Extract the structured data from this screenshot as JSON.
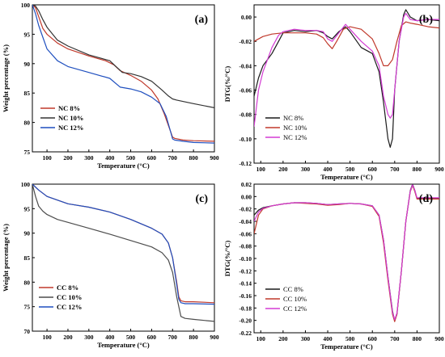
{
  "colors": {
    "black": "#1a1a1a",
    "red": "#c0392b",
    "blue": "#1f4fbf",
    "magenta": "#d33bd3",
    "gray": "#4d4d4d"
  },
  "chart_data": [
    {
      "id": "a",
      "panel_label": "(a)",
      "type": "line",
      "xlabel": "Temperature (°C)",
      "ylabel": "Weight percentage (%)",
      "xlim": [
        30,
        900
      ],
      "ylim": [
        75,
        100
      ],
      "xticks": [
        100,
        200,
        300,
        400,
        500,
        600,
        700,
        800,
        900
      ],
      "yticks": [
        75,
        80,
        85,
        90,
        95,
        100
      ],
      "legend_position": "lower-left",
      "legend_style": "bold",
      "series": [
        {
          "name": "NC 8%",
          "color": "#c0392b",
          "x": [
            30,
            45,
            60,
            80,
            100,
            150,
            200,
            300,
            380,
            420,
            450,
            500,
            550,
            600,
            630,
            660,
            690,
            700,
            710,
            750,
            800,
            900
          ],
          "y": [
            100,
            99.5,
            98,
            96,
            95,
            93.5,
            92.5,
            91.3,
            90.5,
            89.8,
            88.8,
            88.0,
            87.0,
            85.5,
            84.0,
            81.5,
            78.5,
            77.5,
            77.3,
            77.0,
            76.9,
            76.8
          ]
        },
        {
          "name": "NC 10%",
          "color": "#333333",
          "x": [
            30,
            45,
            60,
            80,
            100,
            150,
            200,
            300,
            400,
            430,
            460,
            500,
            550,
            600,
            650,
            680,
            700,
            720,
            800,
            900
          ],
          "y": [
            100,
            99.8,
            99.0,
            97.5,
            96.2,
            94.0,
            93.0,
            91.5,
            90.5,
            89.5,
            88.5,
            88.3,
            87.8,
            87.0,
            85.5,
            84.5,
            84.0,
            83.8,
            83.2,
            82.5
          ]
        },
        {
          "name": "NC 12%",
          "color": "#1f4fbf",
          "x": [
            30,
            45,
            60,
            80,
            100,
            150,
            200,
            300,
            400,
            450,
            500,
            550,
            600,
            640,
            670,
            690,
            700,
            710,
            750,
            800,
            900
          ],
          "y": [
            100,
            98.5,
            96.5,
            94.5,
            92.5,
            90.5,
            89.5,
            88.5,
            87.5,
            86.0,
            85.7,
            85.2,
            84.3,
            83.2,
            81.0,
            78.5,
            77.2,
            77.0,
            76.8,
            76.6,
            76.5
          ]
        }
      ]
    },
    {
      "id": "b",
      "panel_label": "(b)",
      "type": "line",
      "xlabel": "Temperature (°C)",
      "ylabel": "DTG(%/°C)",
      "xlim": [
        70,
        900
      ],
      "ylim": [
        -0.12,
        0.01
      ],
      "xticks": [
        100,
        200,
        300,
        400,
        500,
        600,
        700,
        800,
        900
      ],
      "yticks": [
        0.0,
        -0.02,
        -0.04,
        -0.06,
        -0.08,
        -0.1,
        -0.12
      ],
      "ytick_labels": [
        "0.00",
        "-0.02",
        "-0.04",
        "-0.06",
        "-0.08",
        "-0.10",
        "-0.12"
      ],
      "legend_position": "lower-left",
      "legend_style": "normal",
      "series": [
        {
          "name": "NC 8%",
          "color": "#1a1a1a",
          "x": [
            70,
            90,
            110,
            130,
            150,
            180,
            200,
            250,
            300,
            350,
            380,
            400,
            420,
            450,
            480,
            500,
            550,
            600,
            630,
            650,
            670,
            680,
            690,
            700,
            720,
            740,
            750,
            770,
            800,
            850,
            900
          ],
          "y": [
            -0.065,
            -0.05,
            -0.04,
            -0.035,
            -0.03,
            -0.02,
            -0.013,
            -0.011,
            -0.012,
            -0.011,
            -0.013,
            -0.016,
            -0.018,
            -0.012,
            -0.008,
            -0.012,
            -0.025,
            -0.03,
            -0.045,
            -0.07,
            -0.1,
            -0.107,
            -0.1,
            -0.06,
            -0.02,
            0.002,
            0.006,
            0.0,
            -0.003,
            -0.002,
            -0.003
          ]
        },
        {
          "name": "NC 10%",
          "color": "#c0392b",
          "x": [
            70,
            90,
            110,
            130,
            150,
            200,
            250,
            300,
            350,
            380,
            400,
            420,
            440,
            470,
            500,
            550,
            600,
            630,
            650,
            670,
            690,
            710,
            730,
            750,
            770,
            800,
            850,
            900
          ],
          "y": [
            -0.02,
            -0.018,
            -0.016,
            -0.015,
            -0.014,
            -0.013,
            -0.013,
            -0.013,
            -0.014,
            -0.017,
            -0.022,
            -0.026,
            -0.02,
            -0.01,
            -0.008,
            -0.01,
            -0.018,
            -0.03,
            -0.04,
            -0.04,
            -0.035,
            -0.02,
            -0.007,
            -0.004,
            -0.005,
            -0.006,
            -0.008,
            -0.009
          ]
        },
        {
          "name": "NC 12%",
          "color": "#d33bd3",
          "x": [
            70,
            90,
            110,
            130,
            150,
            180,
            200,
            250,
            300,
            350,
            380,
            400,
            420,
            450,
            480,
            500,
            550,
            600,
            630,
            650,
            670,
            680,
            690,
            700,
            720,
            740,
            750,
            770,
            800,
            850,
            900
          ],
          "y": [
            -0.09,
            -0.06,
            -0.045,
            -0.035,
            -0.025,
            -0.015,
            -0.012,
            -0.01,
            -0.011,
            -0.011,
            -0.012,
            -0.018,
            -0.02,
            -0.013,
            -0.006,
            -0.01,
            -0.02,
            -0.028,
            -0.04,
            -0.065,
            -0.08,
            -0.083,
            -0.08,
            -0.06,
            -0.02,
            0.0,
            0.003,
            -0.002,
            -0.003,
            -0.002,
            -0.002
          ]
        }
      ]
    },
    {
      "id": "c",
      "panel_label": "(c)",
      "type": "line",
      "xlabel": "Temperature (°C)",
      "ylabel": "Weight percentage (%)",
      "xlim": [
        30,
        900
      ],
      "ylim": [
        70,
        100
      ],
      "xticks": [
        100,
        200,
        300,
        400,
        500,
        600,
        700,
        800,
        900
      ],
      "yticks": [
        70,
        75,
        80,
        85,
        90,
        95,
        100
      ],
      "legend_position": "lower-left",
      "legend_style": "bold",
      "series": [
        {
          "name": "CC 8%",
          "color": "#c0392b",
          "x": [
            30,
            60,
            100,
            200,
            300,
            400,
            500,
            600,
            650,
            680,
            700,
            720,
            730,
            740,
            760,
            800,
            900
          ],
          "y": [
            100,
            98.8,
            97.5,
            96.0,
            95.3,
            94.3,
            92.8,
            91.0,
            89.8,
            88.0,
            85.0,
            80.0,
            77.0,
            76.2,
            76.0,
            76.0,
            75.8
          ]
        },
        {
          "name": "CC 10%",
          "color": "#4d4d4d",
          "x": [
            30,
            45,
            60,
            80,
            100,
            150,
            200,
            300,
            400,
            500,
            600,
            650,
            680,
            700,
            720,
            740,
            760,
            800,
            900
          ],
          "y": [
            100,
            97.5,
            95.5,
            94.5,
            93.8,
            92.8,
            92.2,
            91.0,
            89.8,
            88.5,
            87.2,
            86.0,
            84.5,
            82.0,
            77.0,
            73.0,
            72.6,
            72.4,
            72.0
          ]
        },
        {
          "name": "CC 12%",
          "color": "#1f4fbf",
          "x": [
            30,
            60,
            100,
            200,
            300,
            400,
            500,
            600,
            650,
            680,
            700,
            720,
            730,
            740,
            760,
            800,
            900
          ],
          "y": [
            100,
            98.8,
            97.5,
            96.0,
            95.3,
            94.3,
            92.8,
            91.0,
            89.8,
            88.0,
            85.0,
            79.5,
            76.5,
            75.8,
            75.6,
            75.6,
            75.5
          ]
        }
      ]
    },
    {
      "id": "d",
      "panel_label": "(d)",
      "type": "line",
      "xlabel": "Temperature (°C)",
      "ylabel": "DTG(%/°C)",
      "xlim": [
        70,
        900
      ],
      "ylim": [
        -0.22,
        0.02
      ],
      "xticks": [
        100,
        200,
        300,
        400,
        500,
        600,
        700,
        800,
        900
      ],
      "yticks": [
        0.02,
        0.0,
        -0.02,
        -0.04,
        -0.06,
        -0.08,
        -0.1,
        -0.12,
        -0.14,
        -0.16,
        -0.18,
        -0.2,
        -0.22
      ],
      "ytick_labels": [
        "0.02",
        "0.00",
        "-0.02",
        "-0.04",
        "-0.06",
        "-0.08",
        "-0.10",
        "-0.12",
        "-0.14",
        "-0.16",
        "-0.18",
        "-0.20",
        "-0.22"
      ],
      "legend_position": "lower-left",
      "legend_style": "normal",
      "series": [
        {
          "name": "CC 8%",
          "color": "#1a1a1a",
          "x": [
            70,
            90,
            110,
            150,
            200,
            250,
            300,
            350,
            400,
            450,
            500,
            550,
            600,
            630,
            650,
            670,
            690,
            700,
            710,
            730,
            750,
            770,
            780,
            790,
            800,
            850,
            900
          ],
          "y": [
            -0.03,
            -0.022,
            -0.018,
            -0.015,
            -0.012,
            -0.01,
            -0.01,
            -0.011,
            -0.013,
            -0.012,
            -0.011,
            -0.012,
            -0.015,
            -0.03,
            -0.07,
            -0.13,
            -0.185,
            -0.2,
            -0.19,
            -0.12,
            -0.04,
            0.01,
            0.02,
            0.01,
            -0.003,
            -0.003,
            -0.003
          ]
        },
        {
          "name": "CC 10%",
          "color": "#c0392b",
          "x": [
            70,
            90,
            110,
            150,
            200,
            250,
            300,
            350,
            400,
            450,
            500,
            550,
            600,
            630,
            650,
            670,
            690,
            700,
            710,
            730,
            750,
            770,
            780,
            790,
            800,
            850,
            900
          ],
          "y": [
            -0.06,
            -0.03,
            -0.02,
            -0.015,
            -0.012,
            -0.01,
            -0.011,
            -0.012,
            -0.014,
            -0.013,
            -0.011,
            -0.012,
            -0.016,
            -0.032,
            -0.075,
            -0.135,
            -0.19,
            -0.202,
            -0.19,
            -0.12,
            -0.04,
            0.008,
            0.018,
            0.008,
            -0.004,
            -0.004,
            -0.004
          ]
        },
        {
          "name": "CC 12%",
          "color": "#d33bd3",
          "x": [
            70,
            90,
            110,
            150,
            200,
            250,
            300,
            350,
            400,
            450,
            500,
            550,
            600,
            630,
            650,
            670,
            690,
            700,
            710,
            730,
            750,
            770,
            780,
            790,
            800,
            850,
            900
          ],
          "y": [
            -0.04,
            -0.025,
            -0.019,
            -0.015,
            -0.012,
            -0.01,
            -0.01,
            -0.011,
            -0.013,
            -0.012,
            -0.011,
            -0.012,
            -0.015,
            -0.03,
            -0.07,
            -0.13,
            -0.187,
            -0.199,
            -0.188,
            -0.12,
            -0.04,
            0.009,
            0.019,
            0.01,
            -0.002,
            -0.002,
            -0.002
          ]
        }
      ]
    }
  ]
}
